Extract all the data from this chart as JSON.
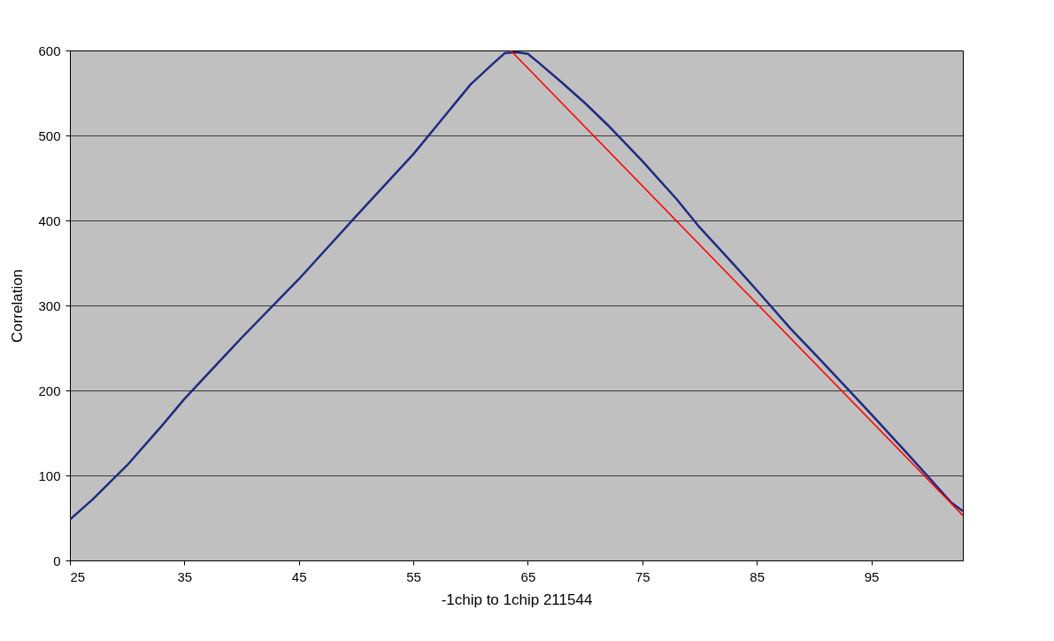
{
  "chart_data": {
    "type": "line",
    "xlabel": "-1chip to 1chip  211544",
    "ylabel": "Correlation",
    "xlim": [
      25,
      103
    ],
    "xticks": [
      25,
      35,
      45,
      55,
      65,
      75,
      85,
      95
    ],
    "ylim": [
      0,
      600
    ],
    "yticks": [
      0,
      100,
      200,
      300,
      400,
      500,
      600
    ],
    "grid": "y",
    "series": [
      {
        "color": "#1f2a80",
        "x": [
          25,
          27,
          30,
          33,
          35,
          40,
          45,
          50,
          55,
          60,
          62,
          63,
          64,
          65,
          66,
          68,
          70,
          72,
          75,
          78,
          80,
          83,
          85,
          88,
          90,
          93,
          95,
          98,
          100,
          102,
          103
        ],
        "values": [
          48,
          72,
          112,
          158,
          190,
          262,
          331,
          405,
          478,
          560,
          585,
          597,
          598,
          596,
          585,
          562,
          538,
          512,
          470,
          425,
          392,
          348,
          318,
          272,
          244,
          201,
          172,
          128,
          98,
          68,
          58
        ]
      },
      {
        "type": "line",
        "color": "#ff0000",
        "x": [
          63.5,
          103
        ],
        "values": [
          600,
          53
        ]
      }
    ]
  }
}
